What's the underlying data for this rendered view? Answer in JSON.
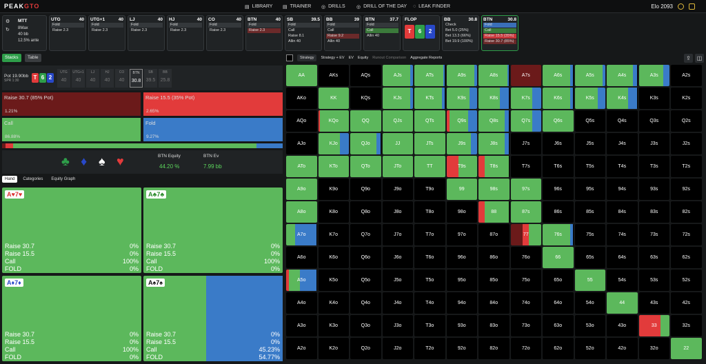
{
  "app": {
    "logo_a": "PEAK",
    "logo_b": "GTO",
    "nav": [
      "LIBRARY",
      "TRAINER",
      "DRILLS",
      "DRILL OF THE DAY",
      "LEAK FINDER"
    ],
    "elo": "Elo  2093"
  },
  "game": {
    "type": "MTT",
    "seats": "8Max",
    "bb": "40 bb",
    "ante": "12.5% ante"
  },
  "positions": [
    {
      "name": "UTG",
      "stack": "40",
      "lines": [
        "Fold",
        "Raise 2.3"
      ]
    },
    {
      "name": "UTG+1",
      "stack": "40",
      "lines": [
        "Fold",
        "Raise 2.3"
      ]
    },
    {
      "name": "LJ",
      "stack": "40",
      "lines": [
        "Fold",
        "Raise 2.3"
      ]
    },
    {
      "name": "HJ",
      "stack": "40",
      "lines": [
        "Fold",
        "Raise 2.3"
      ]
    },
    {
      "name": "CO",
      "stack": "40",
      "lines": [
        "Fold",
        "Raise 2.3"
      ]
    },
    {
      "name": "BTN",
      "stack": "40",
      "lines": [
        "Fold",
        "Raise 2.3"
      ]
    },
    {
      "name": "SB",
      "stack": "39.5",
      "lines": [
        "Fold",
        "Call",
        "Raise 8.1",
        "Allin 40"
      ]
    },
    {
      "name": "BB",
      "stack": "39",
      "lines": [
        "Fold",
        "Call",
        "Raise 9.2",
        "Allin 40"
      ]
    },
    {
      "name": "BTN",
      "stack": "37.7",
      "lines": [
        "Fold",
        "Call",
        "Allin 40"
      ]
    },
    {
      "name": "FLOP",
      "stack": "",
      "lines": []
    },
    {
      "name": "BB",
      "stack": "30.8",
      "lines": [
        "Check",
        "Bet 5.0 (25%)",
        "Bet 13.3 (66%)",
        "Bet 19.9 (100%)"
      ]
    },
    {
      "name": "BTN",
      "stack": "30.8",
      "lines": [
        "Fold",
        "Call",
        "Raise 15.5 (35%)",
        "Raise 30.7 (85%)"
      ]
    }
  ],
  "flop": [
    "T",
    "6",
    "2"
  ],
  "left": {
    "tab1": "Stacks",
    "tab2": "Table",
    "pot_label": "Pot",
    "pot_val": "19.90bb",
    "spr": "SPR 1:30",
    "stacks": [
      {
        "p": "UTG",
        "v": "40"
      },
      {
        "p": "UTG+1",
        "v": "40"
      },
      {
        "p": "LJ",
        "v": "40"
      },
      {
        "p": "HJ",
        "v": "40"
      },
      {
        "p": "CO",
        "v": "40"
      },
      {
        "p": "BTN",
        "v": "30.8"
      },
      {
        "p": "SB",
        "v": "39.5"
      },
      {
        "p": "BB",
        "v": "25.8"
      }
    ],
    "actions": [
      {
        "label": "Raise 30.7 (85% Pot)",
        "pct": "1.21%"
      },
      {
        "label": "Raise 15.5 (35% Pot)",
        "pct": "2.65%"
      },
      {
        "label": "Call",
        "pct": "86.88%"
      },
      {
        "label": "Fold",
        "pct": "9.27%"
      }
    ],
    "equity_label": "BTN Equity",
    "equity_val": "44.20 %",
    "ev_label": "BTN Ev",
    "ev_val": "7.99 bb",
    "tabs": [
      "Hand",
      "Categories",
      "Equity Graph"
    ],
    "hands": [
      {
        "card": "A♥7♥",
        "color": "#d33",
        "stats": [
          [
            "Raise 30.7",
            "0%"
          ],
          [
            "Raise 15.5",
            "0%"
          ],
          [
            "Call",
            "100%"
          ],
          [
            "FOLD",
            "0%"
          ]
        ],
        "fold": 0
      },
      {
        "card": "A♣7♣",
        "color": "#2a8a2a",
        "stats": [
          [
            "Raise 30.7",
            "0%"
          ],
          [
            "Raise 15.5",
            "0%"
          ],
          [
            "Call",
            "100%"
          ],
          [
            "FOLD",
            "0%"
          ]
        ],
        "fold": 0
      },
      {
        "card": "A♦7♦",
        "color": "#2848c8",
        "stats": [
          [
            "Raise 30.7",
            "0%"
          ],
          [
            "Raise 15.5",
            "0%"
          ],
          [
            "Call",
            "100%"
          ],
          [
            "FOLD",
            "0%"
          ]
        ],
        "fold": 0
      },
      {
        "card": "A♠7♠",
        "color": "#111",
        "stats": [
          [
            "Raise 30.7",
            "0%"
          ],
          [
            "Raise 15.5",
            "0%"
          ],
          [
            "Call",
            "45.23%"
          ],
          [
            "FOLD",
            "54.77%"
          ]
        ],
        "fold": 0.5477
      }
    ]
  },
  "matrix_tabs": [
    "Strategy",
    "Strategy + EV",
    "EV",
    "Equity",
    "Runout Comparison",
    "Aggregate Reports"
  ],
  "ranks": [
    "A",
    "K",
    "Q",
    "J",
    "T",
    "9",
    "8",
    "7",
    "6",
    "5",
    "4",
    "3",
    "2"
  ],
  "colors": {
    "call": "#5cb85c",
    "fold": "#3a7bc8",
    "raise_small": "#e23b3b",
    "raise_big": "#6b1a1a",
    "empty": "#000"
  }
}
